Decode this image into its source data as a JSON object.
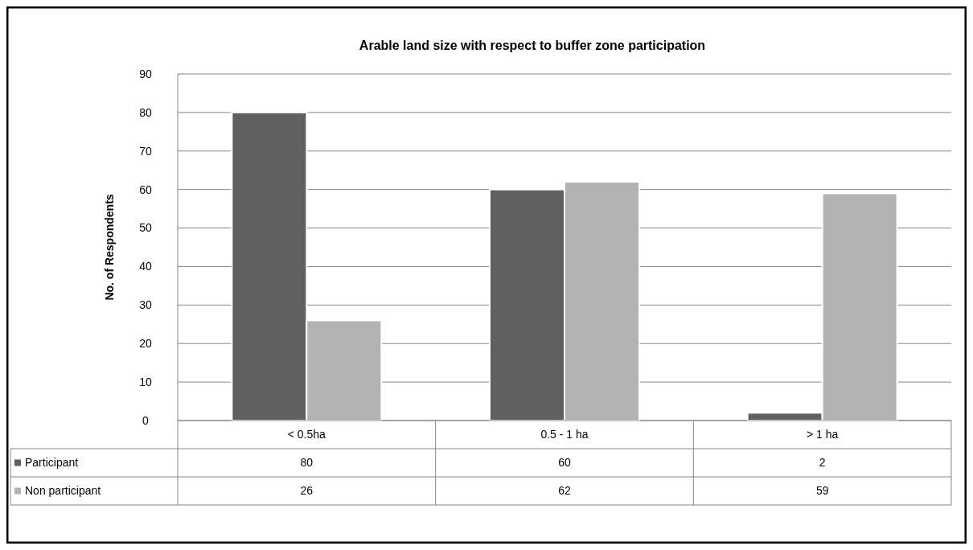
{
  "chart_data": {
    "type": "bar",
    "title": "Arable land size with respect to buffer zone participation",
    "ylabel": "No. of Respondents",
    "categories": [
      "< 0.5ha",
      "0.5 - 1 ha",
      "> 1 ha"
    ],
    "series": [
      {
        "name": "Participant",
        "color": "#606060",
        "values": [
          80,
          60,
          2
        ]
      },
      {
        "name": "Non participant",
        "color": "#b2b2b2",
        "values": [
          26,
          62,
          59
        ]
      }
    ],
    "ylim": [
      0,
      90
    ],
    "yticks": [
      0,
      10,
      20,
      30,
      40,
      50,
      60,
      70,
      80,
      90
    ],
    "grid": "y",
    "legend": "bottom",
    "data_labels": true
  }
}
